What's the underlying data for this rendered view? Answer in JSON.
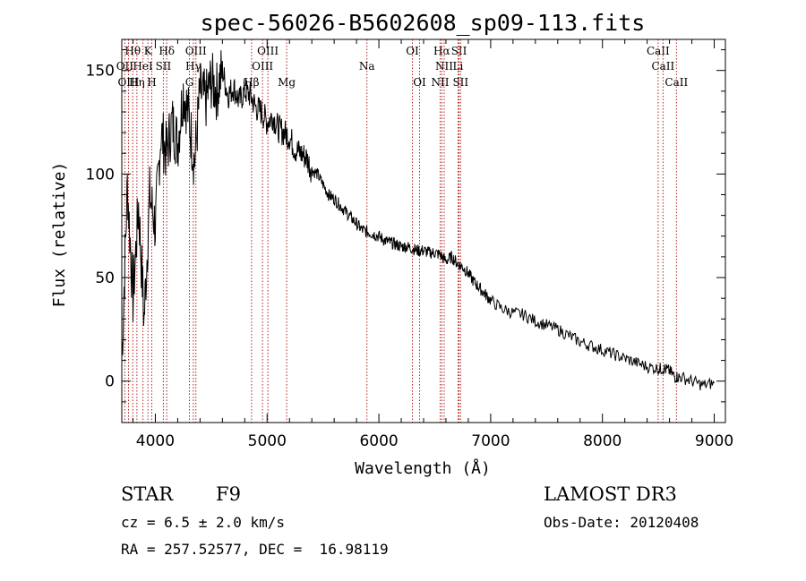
{
  "chart_data": {
    "type": "line",
    "title": "spec-56026-B5602608_sp09-113.fits",
    "xlabel": "Wavelength (Å)",
    "ylabel": "Flux (relative)",
    "xlim": [
      3700,
      9100
    ],
    "ylim": [
      -20,
      165
    ],
    "xticks": [
      4000,
      5000,
      6000,
      7000,
      8000,
      9000
    ],
    "xtick_labels": [
      "4000",
      "5000",
      "6000",
      "7000",
      "8000",
      "9000"
    ],
    "yticks": [
      0,
      50,
      100,
      150
    ],
    "ytick_labels": [
      "0",
      "50",
      "100",
      "150"
    ],
    "grid": false,
    "series": [
      {
        "name": "spectrum",
        "x": [
          3700,
          3750,
          3800,
          3850,
          3900,
          3950,
          4000,
          4050,
          4100,
          4150,
          4200,
          4250,
          4300,
          4350,
          4400,
          4450,
          4500,
          4550,
          4600,
          4650,
          4700,
          4750,
          4800,
          4850,
          4900,
          4950,
          5000,
          5050,
          5100,
          5150,
          5200,
          5250,
          5300,
          5350,
          5400,
          5450,
          5500,
          5550,
          5600,
          5650,
          5700,
          5750,
          5800,
          5850,
          5900,
          5950,
          6000,
          6050,
          6100,
          6150,
          6200,
          6250,
          6300,
          6350,
          6400,
          6450,
          6500,
          6550,
          6600,
          6650,
          6700,
          6750,
          6800,
          6850,
          6900,
          6950,
          7000,
          7100,
          7200,
          7300,
          7400,
          7500,
          7600,
          7700,
          7800,
          7900,
          8000,
          8100,
          8200,
          8300,
          8400,
          8500,
          8550,
          8600,
          8650,
          8700,
          8800,
          8900,
          9000
        ],
        "y": [
          10,
          95,
          40,
          85,
          30,
          90,
          75,
          120,
          110,
          125,
          115,
          140,
          128,
          105,
          140,
          135,
          145,
          140,
          150,
          138,
          142,
          135,
          140,
          138,
          132,
          130,
          125,
          128,
          122,
          120,
          118,
          112,
          110,
          108,
          102,
          100,
          95,
          90,
          88,
          85,
          82,
          79,
          76,
          73,
          72,
          71,
          70,
          68,
          67,
          66,
          65,
          65,
          64,
          63,
          63,
          62,
          62,
          61,
          58,
          60,
          57,
          55,
          52,
          48,
          45,
          42,
          39,
          35,
          33,
          32,
          29,
          27,
          25,
          22,
          19,
          17,
          15,
          13,
          11,
          9,
          7,
          6,
          6,
          5,
          2,
          2,
          0,
          -2,
          -1
        ]
      }
    ],
    "line_markers": [
      {
        "name": "Hθ",
        "wavelength": 3798,
        "row": 1
      },
      {
        "name": "K",
        "wavelength": 3934,
        "row": 1
      },
      {
        "name": "Hδ",
        "wavelength": 4102,
        "row": 1
      },
      {
        "name": "OIII",
        "wavelength": 4363,
        "row": 1
      },
      {
        "name": "OIII",
        "wavelength": 5007,
        "row": 1
      },
      {
        "name": "OI",
        "wavelength": 6300,
        "row": 1
      },
      {
        "name": "Hα",
        "wavelength": 6563,
        "row": 1
      },
      {
        "name": "SII",
        "wavelength": 6717,
        "row": 1
      },
      {
        "name": "CaII",
        "wavelength": 8498,
        "row": 1
      },
      {
        "name": "OII",
        "wavelength": 3727,
        "row": 2
      },
      {
        "name": "HeI",
        "wavelength": 3889,
        "row": 2
      },
      {
        "name": "SII",
        "wavelength": 4072,
        "row": 2
      },
      {
        "name": "Hγ",
        "wavelength": 4340,
        "row": 2
      },
      {
        "name": "OIII",
        "wavelength": 4959,
        "row": 2
      },
      {
        "name": "Na",
        "wavelength": 5893,
        "row": 2
      },
      {
        "name": "NII",
        "wavelength": 6584,
        "row": 2
      },
      {
        "name": "Li",
        "wavelength": 6708,
        "row": 2
      },
      {
        "name": "CaII",
        "wavelength": 8542,
        "row": 2
      },
      {
        "name": "OIII",
        "wavelength": 3760,
        "row": 3
      },
      {
        "name": "Hη",
        "wavelength": 3835,
        "row": 3
      },
      {
        "name": "H",
        "wavelength": 3968,
        "row": 3
      },
      {
        "name": "G",
        "wavelength": 4305,
        "row": 3
      },
      {
        "name": "Hβ",
        "wavelength": 4861,
        "row": 3
      },
      {
        "name": "Mg",
        "wavelength": 5175,
        "row": 3
      },
      {
        "name": "OI",
        "wavelength": 6364,
        "row": 3
      },
      {
        "name": "NII",
        "wavelength": 6548,
        "row": 3
      },
      {
        "name": "SII",
        "wavelength": 6731,
        "row": 3
      },
      {
        "name": "CaII",
        "wavelength": 8662,
        "row": 3
      }
    ]
  },
  "info": {
    "object_class": "STAR",
    "subclass": "F9",
    "cz": "cz = 6.5 ± 2.0 km/s",
    "coords": "RA = 257.52577, DEC =  16.98119",
    "survey": "LAMOST DR3",
    "obs_date": "Obs-Date: 20120408"
  },
  "colors": {
    "spectrum": "#000000",
    "marker": "#b22222",
    "axis": "#000000"
  }
}
